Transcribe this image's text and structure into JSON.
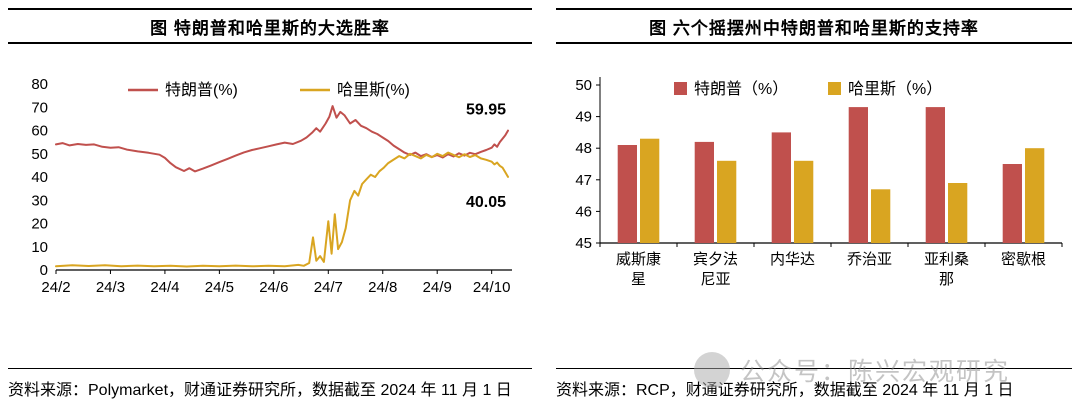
{
  "left_panel": {
    "title": "图  特朗普和哈里斯的大选胜率",
    "source": "资料来源：Polymarket，财通证券研究所，数据截至 2024 年 11 月 1 日"
  },
  "right_panel": {
    "title": "图  六个摇摆州中特朗普和哈里斯的支持率",
    "source": "资料来源：RCP，财通证券研究所，数据截至 2024 年 11 月 1 日"
  },
  "watermark": {
    "text": "公众号：陈兴宏观研究"
  },
  "colors": {
    "trump": "#C0504D",
    "harris": "#D9A521",
    "axis": "#000000"
  },
  "chart_data": [
    {
      "type": "line",
      "title": "特朗普和哈里斯的大选胜率",
      "x_tick_labels": [
        "24/2",
        "24/3",
        "24/4",
        "24/5",
        "24/6",
        "24/7",
        "24/8",
        "24/9",
        "24/10"
      ],
      "x_domain": [
        0,
        8.3
      ],
      "ylim": [
        0,
        80
      ],
      "y_ticks": [
        0,
        10,
        20,
        30,
        40,
        50,
        60,
        70,
        80
      ],
      "grid": false,
      "legend_position": "top",
      "series": [
        {
          "name": "特朗普(%)",
          "color": "#C0504D",
          "end_label": "59.95",
          "points": [
            [
              0,
              54
            ],
            [
              0.12,
              54.6
            ],
            [
              0.25,
              53.6
            ],
            [
              0.4,
              54.2
            ],
            [
              0.55,
              53.8
            ],
            [
              0.7,
              54
            ],
            [
              0.85,
              53
            ],
            [
              1,
              52.6
            ],
            [
              1.15,
              52.8
            ],
            [
              1.3,
              51.8
            ],
            [
              1.5,
              51
            ],
            [
              1.7,
              50.4
            ],
            [
              1.9,
              49.6
            ],
            [
              2,
              48.2
            ],
            [
              2.1,
              46
            ],
            [
              2.2,
              44.2
            ],
            [
              2.35,
              42.6
            ],
            [
              2.45,
              43.8
            ],
            [
              2.55,
              42.4
            ],
            [
              2.7,
              43.6
            ],
            [
              2.85,
              45
            ],
            [
              3,
              46.4
            ],
            [
              3.15,
              47.8
            ],
            [
              3.3,
              49.2
            ],
            [
              3.45,
              50.6
            ],
            [
              3.6,
              51.6
            ],
            [
              3.75,
              52.4
            ],
            [
              3.9,
              53.2
            ],
            [
              4.05,
              54
            ],
            [
              4.2,
              54.8
            ],
            [
              4.35,
              54.2
            ],
            [
              4.5,
              55.6
            ],
            [
              4.6,
              57
            ],
            [
              4.7,
              59
            ],
            [
              4.78,
              61
            ],
            [
              4.85,
              59.5
            ],
            [
              4.95,
              63
            ],
            [
              5.02,
              66
            ],
            [
              5.08,
              70.5
            ],
            [
              5.15,
              65.5
            ],
            [
              5.22,
              68
            ],
            [
              5.3,
              66.5
            ],
            [
              5.4,
              63
            ],
            [
              5.5,
              64.5
            ],
            [
              5.6,
              62
            ],
            [
              5.7,
              61
            ],
            [
              5.8,
              59.5
            ],
            [
              5.9,
              58.5
            ],
            [
              6,
              57
            ],
            [
              6.1,
              55.5
            ],
            [
              6.2,
              53.5
            ],
            [
              6.3,
              52
            ],
            [
              6.4,
              50.5
            ],
            [
              6.5,
              49.5
            ],
            [
              6.6,
              50.5
            ],
            [
              6.7,
              49
            ],
            [
              6.8,
              49.8
            ],
            [
              6.9,
              48.6
            ],
            [
              7,
              49.4
            ],
            [
              7.1,
              48.4
            ],
            [
              7.2,
              49.8
            ],
            [
              7.3,
              48.8
            ],
            [
              7.4,
              50.2
            ],
            [
              7.5,
              49.2
            ],
            [
              7.6,
              50.4
            ],
            [
              7.7,
              49.8
            ],
            [
              7.8,
              50.8
            ],
            [
              7.9,
              51.6
            ],
            [
              8,
              52.6
            ],
            [
              8.05,
              54
            ],
            [
              8.1,
              53
            ],
            [
              8.15,
              55
            ],
            [
              8.2,
              56.5
            ],
            [
              8.25,
              58
            ],
            [
              8.3,
              59.95
            ]
          ]
        },
        {
          "name": "哈里斯(%)",
          "color": "#D9A521",
          "end_label": "40.05",
          "points": [
            [
              0,
              1.6
            ],
            [
              0.3,
              2
            ],
            [
              0.6,
              1.7
            ],
            [
              0.9,
              2
            ],
            [
              1.2,
              1.6
            ],
            [
              1.5,
              1.9
            ],
            [
              1.8,
              1.6
            ],
            [
              2.1,
              1.8
            ],
            [
              2.4,
              1.5
            ],
            [
              2.7,
              1.8
            ],
            [
              3,
              1.6
            ],
            [
              3.3,
              1.9
            ],
            [
              3.6,
              1.6
            ],
            [
              3.9,
              1.8
            ],
            [
              4.2,
              1.6
            ],
            [
              4.45,
              2.2
            ],
            [
              4.55,
              1.8
            ],
            [
              4.65,
              3
            ],
            [
              4.72,
              14
            ],
            [
              4.78,
              4
            ],
            [
              4.85,
              6
            ],
            [
              4.92,
              3.5
            ],
            [
              5,
              21
            ],
            [
              5.06,
              7
            ],
            [
              5.12,
              24
            ],
            [
              5.18,
              9
            ],
            [
              5.25,
              12
            ],
            [
              5.32,
              18
            ],
            [
              5.4,
              30
            ],
            [
              5.48,
              34
            ],
            [
              5.55,
              32
            ],
            [
              5.62,
              37
            ],
            [
              5.7,
              39
            ],
            [
              5.78,
              41
            ],
            [
              5.86,
              40
            ],
            [
              5.94,
              42.5
            ],
            [
              6.02,
              44
            ],
            [
              6.1,
              46
            ],
            [
              6.2,
              47.5
            ],
            [
              6.3,
              49
            ],
            [
              6.4,
              48
            ],
            [
              6.5,
              50
            ],
            [
              6.6,
              49
            ],
            [
              6.7,
              48
            ],
            [
              6.8,
              49.5
            ],
            [
              6.9,
              48.5
            ],
            [
              7,
              50
            ],
            [
              7.1,
              49
            ],
            [
              7.2,
              50.5
            ],
            [
              7.3,
              49.5
            ],
            [
              7.4,
              48.5
            ],
            [
              7.5,
              49.8
            ],
            [
              7.6,
              48.6
            ],
            [
              7.7,
              49.4
            ],
            [
              7.8,
              48
            ],
            [
              7.9,
              47.4
            ],
            [
              8,
              46.6
            ],
            [
              8.05,
              45.4
            ],
            [
              8.1,
              46.2
            ],
            [
              8.15,
              44.8
            ],
            [
              8.2,
              44
            ],
            [
              8.25,
              42
            ],
            [
              8.3,
              40.05
            ]
          ]
        }
      ]
    },
    {
      "type": "bar",
      "title": "六个摇摆州中特朗普和哈里斯的支持率",
      "categories": [
        "威斯康星",
        "宾夕法尼亚",
        "内华达",
        "乔治亚",
        "亚利桑那",
        "密歇根"
      ],
      "ylim": [
        45,
        50
      ],
      "y_ticks": [
        45,
        46,
        47,
        48,
        49,
        50
      ],
      "grid": false,
      "legend_position": "top",
      "series": [
        {
          "name": "特朗普（%）",
          "color": "#C0504D",
          "values": [
            48.1,
            48.2,
            48.5,
            49.3,
            49.3,
            47.5
          ]
        },
        {
          "name": "哈里斯（%）",
          "color": "#D9A521",
          "values": [
            48.3,
            47.6,
            47.6,
            46.7,
            46.9,
            48.0
          ]
        }
      ]
    }
  ]
}
